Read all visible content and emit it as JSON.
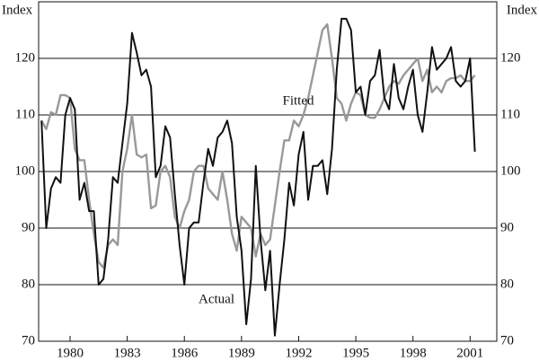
{
  "chart_data": {
    "type": "line",
    "y_label": "Index",
    "annotations": [
      "Fitted",
      "Actual"
    ],
    "x": [
      1978.5,
      1978.75,
      1979,
      1979.25,
      1979.5,
      1979.75,
      1980,
      1980.25,
      1980.5,
      1980.75,
      1981,
      1981.25,
      1981.5,
      1981.75,
      1982,
      1982.25,
      1982.5,
      1982.75,
      1983,
      1983.25,
      1983.5,
      1983.75,
      1984,
      1984.25,
      1984.5,
      1984.75,
      1985,
      1985.25,
      1985.5,
      1985.75,
      1986,
      1986.25,
      1986.5,
      1986.75,
      1987,
      1987.25,
      1987.5,
      1987.75,
      1988,
      1988.25,
      1988.5,
      1988.75,
      1989,
      1989.25,
      1989.5,
      1989.75,
      1990,
      1990.25,
      1990.5,
      1990.75,
      1991,
      1991.25,
      1991.5,
      1991.75,
      1992,
      1992.25,
      1992.5,
      1992.75,
      1993,
      1993.25,
      1993.5,
      1993.75,
      1994,
      1994.25,
      1994.5,
      1994.75,
      1995,
      1995.25,
      1995.5,
      1995.75,
      1996,
      1996.25,
      1996.5,
      1996.75,
      1997,
      1997.25,
      1997.5,
      1997.75,
      1998,
      1998.25,
      1998.5,
      1998.75,
      1999,
      1999.25,
      1999.5,
      1999.75,
      2000,
      2000.25,
      2000.5,
      2000.75,
      2001,
      2001.25
    ],
    "series": [
      {
        "name": "Actual",
        "color": "#111111",
        "values": [
          109,
          90,
          97,
          99,
          98,
          110,
          113,
          111,
          95,
          98,
          93,
          93,
          80,
          81,
          88,
          99,
          98,
          105,
          112,
          124.5,
          121,
          117,
          118,
          115,
          99,
          101,
          108,
          106,
          96,
          87,
          80,
          90,
          91,
          91,
          98,
          104,
          101,
          106,
          107,
          109,
          105,
          92,
          86,
          73,
          81,
          101,
          88,
          79,
          86,
          71,
          80,
          88,
          98,
          94,
          103,
          107,
          95,
          101,
          101,
          102,
          96,
          104,
          118,
          127,
          127,
          125,
          114,
          115,
          110,
          116,
          117,
          121.5,
          113,
          111,
          119,
          113,
          111,
          115,
          118,
          110,
          107,
          114,
          122,
          118,
          119,
          120,
          122,
          116,
          115,
          116,
          120,
          103.5
        ]
      },
      {
        "name": "Fitted",
        "color": "#999999",
        "values": [
          109,
          107.5,
          110.5,
          110,
          113.5,
          113.5,
          113,
          104,
          102,
          102,
          95,
          89,
          84,
          83,
          87,
          88,
          87,
          100,
          104,
          110,
          103,
          102.5,
          103,
          93.5,
          94,
          100,
          101,
          99,
          92,
          90,
          93,
          95,
          100,
          101,
          101,
          97,
          96,
          95,
          100,
          95,
          89,
          86,
          92,
          91,
          90,
          85,
          89,
          87,
          88,
          94,
          100,
          105.5,
          105.5,
          109,
          108,
          110,
          113,
          117,
          121,
          125,
          126,
          120,
          113,
          112,
          109,
          112,
          114,
          113.5,
          110,
          109.5,
          109.5,
          111,
          113,
          115,
          116,
          115.5,
          117,
          118,
          119,
          120,
          116,
          118,
          114,
          115,
          114,
          116,
          116.5,
          116.5,
          117,
          116,
          116,
          117
        ]
      }
    ],
    "xlim": [
      1978.35,
      2002.4
    ],
    "xticks": [
      1980,
      1983,
      1986,
      1989,
      1992,
      1995,
      1998,
      2001
    ],
    "ylim": [
      70,
      130
    ],
    "yticks": [
      70,
      80,
      90,
      100,
      110,
      120
    ],
    "grid": true
  }
}
